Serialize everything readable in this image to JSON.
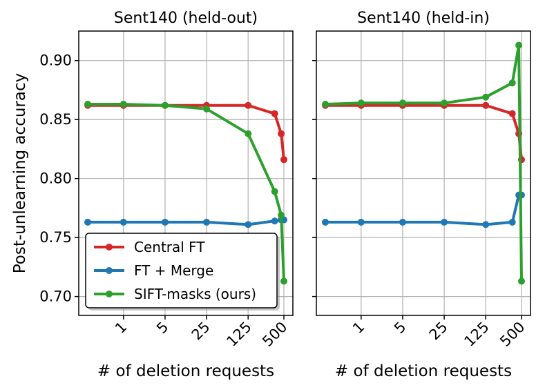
{
  "figure": {
    "ylabel": "Post-unlearning accuracy"
  },
  "legend": {
    "placement": "lower-left of first panel",
    "entries": [
      {
        "name": "Central FT",
        "color": "#d62728"
      },
      {
        "name": "FT + Merge",
        "color": "#1f77b4"
      },
      {
        "name": "SIFT-masks (ours)",
        "color": "#2ca02c"
      }
    ]
  },
  "chart_data": [
    {
      "type": "line",
      "title": "Sent140 (held-out)",
      "xlabel": "# of deletion requests",
      "ylabel": "Post-unlearning accuracy",
      "x_scale": "log",
      "x_ticks": [
        {
          "value": 1,
          "label": "1"
        },
        {
          "value": 5,
          "label": "5"
        },
        {
          "value": 25,
          "label": "25"
        },
        {
          "value": 125,
          "label": "125"
        },
        {
          "value": 500,
          "label": "500"
        }
      ],
      "y_ticks": [
        {
          "value": 0.7,
          "label": "0.70"
        },
        {
          "value": 0.75,
          "label": "0.75"
        },
        {
          "value": 0.8,
          "label": "0.80"
        },
        {
          "value": 0.85,
          "label": "0.85"
        },
        {
          "value": 0.9,
          "label": "0.90"
        }
      ],
      "ylim": [
        0.684,
        0.925
      ],
      "grid": true,
      "series": [
        {
          "name": "Central FT",
          "color": "#d62728",
          "x": [
            0.25,
            1,
            5,
            25,
            125,
            350,
            450,
            500
          ],
          "y": [
            0.862,
            0.862,
            0.862,
            0.862,
            0.862,
            0.855,
            0.838,
            0.816
          ]
        },
        {
          "name": "FT + Merge",
          "color": "#1f77b4",
          "x": [
            0.25,
            1,
            5,
            25,
            125,
            350,
            450,
            500
          ],
          "y": [
            0.763,
            0.763,
            0.763,
            0.763,
            0.761,
            0.764,
            0.765,
            0.765
          ]
        },
        {
          "name": "SIFT-masks (ours)",
          "color": "#2ca02c",
          "x": [
            0.25,
            1,
            5,
            25,
            125,
            350,
            450,
            500
          ],
          "y": [
            0.863,
            0.863,
            0.862,
            0.859,
            0.838,
            0.789,
            0.769,
            0.713
          ]
        }
      ]
    },
    {
      "type": "line",
      "title": "Sent140 (held-in)",
      "xlabel": "# of deletion requests",
      "x_scale": "log",
      "x_ticks": [
        {
          "value": 1,
          "label": "1"
        },
        {
          "value": 5,
          "label": "5"
        },
        {
          "value": 25,
          "label": "25"
        },
        {
          "value": 125,
          "label": "125"
        },
        {
          "value": 500,
          "label": "500"
        }
      ],
      "y_ticks": [
        {
          "value": 0.7,
          "label": ""
        },
        {
          "value": 0.75,
          "label": ""
        },
        {
          "value": 0.8,
          "label": ""
        },
        {
          "value": 0.85,
          "label": ""
        },
        {
          "value": 0.9,
          "label": ""
        }
      ],
      "ylim": [
        0.684,
        0.925
      ],
      "grid": true,
      "series": [
        {
          "name": "Central FT",
          "color": "#d62728",
          "x": [
            0.25,
            1,
            5,
            25,
            125,
            350,
            450,
            500
          ],
          "y": [
            0.862,
            0.862,
            0.862,
            0.862,
            0.862,
            0.855,
            0.838,
            0.816
          ]
        },
        {
          "name": "FT + Merge",
          "color": "#1f77b4",
          "x": [
            0.25,
            1,
            5,
            25,
            125,
            350,
            450,
            500
          ],
          "y": [
            0.763,
            0.763,
            0.763,
            0.763,
            0.761,
            0.763,
            0.786,
            0.786
          ]
        },
        {
          "name": "SIFT-masks (ours)",
          "color": "#2ca02c",
          "x": [
            0.25,
            1,
            5,
            25,
            125,
            350,
            450,
            500
          ],
          "y": [
            0.863,
            0.864,
            0.864,
            0.864,
            0.869,
            0.881,
            0.913,
            0.713
          ]
        }
      ]
    }
  ]
}
